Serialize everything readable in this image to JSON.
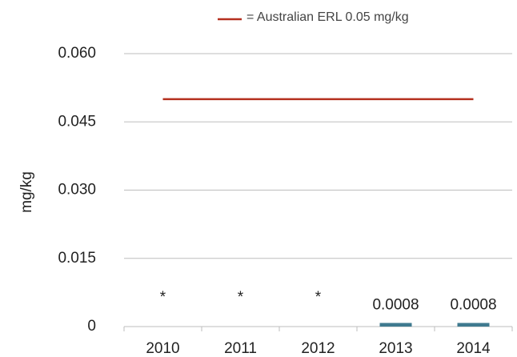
{
  "chart_data": {
    "type": "bar",
    "categories": [
      "2010",
      "2011",
      "2012",
      "2013",
      "2014"
    ],
    "values": [
      null,
      null,
      null,
      0.0008,
      0.0008
    ],
    "value_labels": [
      "*",
      "*",
      "*",
      "0.0008",
      "0.0008"
    ],
    "color": "#3f7a8f",
    "ylabel": "mg/kg",
    "ylim": [
      0,
      0.06
    ],
    "yticks": [
      0,
      0.015,
      {
        "value": 0.03,
        "label": "0.030"
      },
      0.045,
      {
        "value": 0.06,
        "label": "0.060"
      }
    ],
    "grid": true,
    "reference_line": {
      "value": 0.05,
      "label": "= Australian ERL 0.05 mg/kg",
      "color": "#b5301f"
    }
  }
}
